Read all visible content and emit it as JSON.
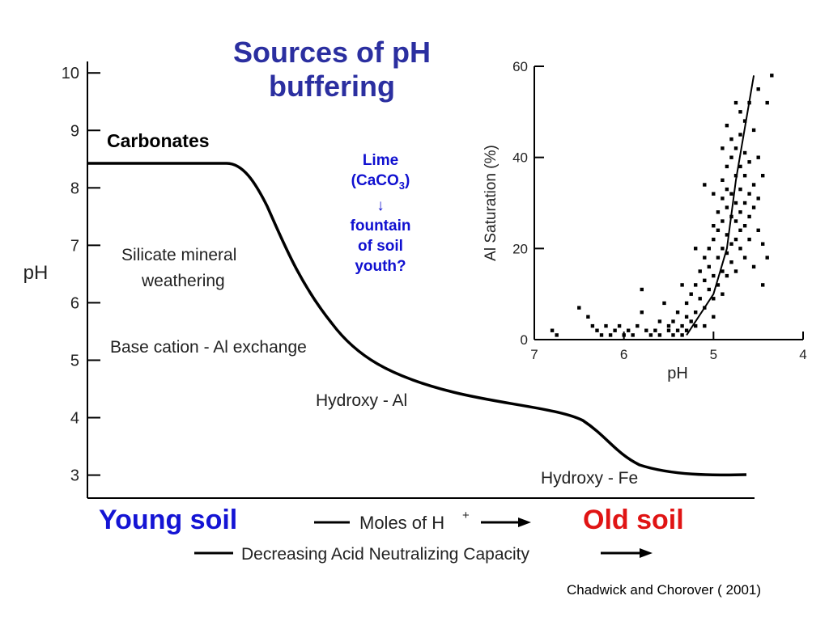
{
  "slide": {
    "title": "Sources of pH buffering",
    "lime_note": {
      "line1": "Lime",
      "line2_prefix": "(CaCO",
      "line2_sub": "3",
      "line2_suffix": ")",
      "arrow": "↓",
      "line3": "fountain",
      "line4": "of soil",
      "line5": "youth?"
    },
    "young_soil": "Young soil",
    "old_soil": "Old soil",
    "credit": "Chadwick and Chorover ( 2001)"
  },
  "chart_data": [
    {
      "type": "line",
      "ylabel": "pH",
      "ylim": [
        2.6,
        10.2
      ],
      "yticks": [
        "10",
        "9",
        "8",
        "7",
        "6",
        "5",
        "4",
        "3"
      ],
      "x_axis_label_prefix": "Moles of H",
      "x_axis_label_sup": "+",
      "secondary_axis_label": "Decreasing Acid Neutralizing Capacity",
      "curve_points": [
        [
          0,
          8.3
        ],
        [
          0.2,
          8.3
        ],
        [
          0.26,
          7.2
        ],
        [
          0.32,
          5.6
        ],
        [
          0.38,
          4.8
        ],
        [
          0.44,
          4.5
        ],
        [
          0.5,
          4.3
        ],
        [
          0.58,
          4.1
        ],
        [
          0.64,
          3.8
        ],
        [
          0.7,
          3.0
        ],
        [
          0.8,
          2.9
        ]
      ],
      "annotations": [
        {
          "label": "Carbonates",
          "level_ph": 8.3
        },
        {
          "label": "Silicate mineral",
          "label2": "weathering"
        },
        {
          "label": "Base cation - Al exchange"
        },
        {
          "label": "Hydroxy - Al"
        },
        {
          "label": "Hydroxy - Fe"
        }
      ],
      "colors": {
        "line": "#000000"
      }
    },
    {
      "type": "scatter",
      "xlabel": "pH",
      "ylabel": "Al Saturation (%)",
      "xlim": [
        7,
        4
      ],
      "ylim": [
        0,
        60
      ],
      "xticks": [
        "7",
        "6",
        "5",
        "4"
      ],
      "yticks": [
        "60",
        "40",
        "20",
        "0"
      ],
      "trend_line": [
        [
          5.3,
          1
        ],
        [
          5.0,
          10
        ],
        [
          4.85,
          20
        ],
        [
          4.75,
          35
        ],
        [
          4.55,
          58
        ]
      ],
      "points": [
        [
          6.8,
          2
        ],
        [
          6.75,
          1
        ],
        [
          6.5,
          7
        ],
        [
          6.4,
          5
        ],
        [
          6.35,
          3
        ],
        [
          6.3,
          2
        ],
        [
          6.25,
          1
        ],
        [
          6.2,
          3
        ],
        [
          6.15,
          1
        ],
        [
          6.1,
          2
        ],
        [
          6.0,
          1
        ],
        [
          5.95,
          2
        ],
        [
          5.9,
          1
        ],
        [
          5.85,
          3
        ],
        [
          5.8,
          11
        ],
        [
          5.75,
          2
        ],
        [
          5.7,
          1
        ],
        [
          5.65,
          2
        ],
        [
          5.6,
          1
        ],
        [
          5.55,
          8
        ],
        [
          5.5,
          2
        ],
        [
          5.5,
          3
        ],
        [
          5.45,
          1
        ],
        [
          5.45,
          4
        ],
        [
          5.4,
          2
        ],
        [
          5.4,
          6
        ],
        [
          5.35,
          3
        ],
        [
          5.35,
          1
        ],
        [
          5.3,
          5
        ],
        [
          5.3,
          8
        ],
        [
          5.3,
          2
        ],
        [
          5.25,
          10
        ],
        [
          5.25,
          4
        ],
        [
          5.2,
          6
        ],
        [
          5.2,
          12
        ],
        [
          5.2,
          3
        ],
        [
          5.15,
          9
        ],
        [
          5.15,
          15
        ],
        [
          5.1,
          7
        ],
        [
          5.1,
          13
        ],
        [
          5.1,
          18
        ],
        [
          5.1,
          3
        ],
        [
          5.05,
          11
        ],
        [
          5.05,
          16
        ],
        [
          5.05,
          20
        ],
        [
          5.0,
          9
        ],
        [
          5.0,
          14
        ],
        [
          5.0,
          22
        ],
        [
          5.0,
          25
        ],
        [
          5.0,
          5
        ],
        [
          4.95,
          12
        ],
        [
          4.95,
          18
        ],
        [
          4.95,
          24
        ],
        [
          4.95,
          28
        ],
        [
          4.9,
          10
        ],
        [
          4.9,
          15
        ],
        [
          4.9,
          20
        ],
        [
          4.9,
          26
        ],
        [
          4.9,
          31
        ],
        [
          4.9,
          35
        ],
        [
          4.85,
          14
        ],
        [
          4.85,
          19
        ],
        [
          4.85,
          23
        ],
        [
          4.85,
          29
        ],
        [
          4.85,
          33
        ],
        [
          4.85,
          38
        ],
        [
          4.8,
          17
        ],
        [
          4.8,
          21
        ],
        [
          4.8,
          27
        ],
        [
          4.8,
          32
        ],
        [
          4.8,
          40
        ],
        [
          4.8,
          44
        ],
        [
          4.75,
          15
        ],
        [
          4.75,
          22
        ],
        [
          4.75,
          26
        ],
        [
          4.75,
          30
        ],
        [
          4.75,
          36
        ],
        [
          4.75,
          42
        ],
        [
          4.7,
          20
        ],
        [
          4.7,
          24
        ],
        [
          4.7,
          28
        ],
        [
          4.7,
          33
        ],
        [
          4.7,
          38
        ],
        [
          4.7,
          45
        ],
        [
          4.7,
          50
        ],
        [
          4.65,
          18
        ],
        [
          4.65,
          25
        ],
        [
          4.65,
          30
        ],
        [
          4.65,
          36
        ],
        [
          4.65,
          41
        ],
        [
          4.65,
          48
        ],
        [
          4.6,
          22
        ],
        [
          4.6,
          27
        ],
        [
          4.6,
          32
        ],
        [
          4.6,
          39
        ],
        [
          4.6,
          52
        ],
        [
          4.55,
          16
        ],
        [
          4.55,
          29
        ],
        [
          4.55,
          34
        ],
        [
          4.55,
          46
        ],
        [
          4.5,
          24
        ],
        [
          4.5,
          31
        ],
        [
          4.5,
          40
        ],
        [
          4.5,
          55
        ],
        [
          4.45,
          21
        ],
        [
          4.45,
          36
        ],
        [
          4.4,
          52
        ],
        [
          4.35,
          58
        ],
        [
          4.4,
          18
        ],
        [
          4.45,
          12
        ],
        [
          5.6,
          4
        ],
        [
          5.8,
          6
        ],
        [
          6.05,
          3
        ],
        [
          5.35,
          12
        ],
        [
          5.2,
          20
        ],
        [
          5.0,
          32
        ],
        [
          5.1,
          34
        ],
        [
          4.9,
          42
        ],
        [
          4.85,
          47
        ],
        [
          4.75,
          52
        ]
      ],
      "colors": {
        "points": "#000000",
        "line": "#000000"
      }
    }
  ]
}
